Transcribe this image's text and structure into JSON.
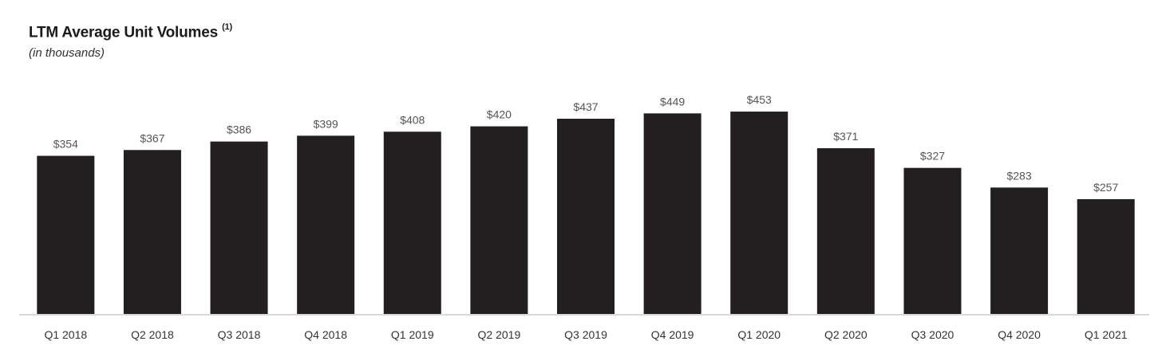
{
  "chart_data": {
    "type": "bar",
    "title": "LTM Average Unit Volumes",
    "title_footnote": "(1)",
    "subtitle": "(in thousands)",
    "xlabel": "",
    "ylabel": "",
    "categories": [
      "Q1 2018",
      "Q2 2018",
      "Q3 2018",
      "Q4 2018",
      "Q1 2019",
      "Q2 2019",
      "Q3 2019",
      "Q4 2019",
      "Q1 2020",
      "Q2 2020",
      "Q3 2020",
      "Q4 2020",
      "Q1 2021"
    ],
    "values": [
      354,
      367,
      386,
      399,
      408,
      420,
      437,
      449,
      453,
      371,
      327,
      283,
      257
    ],
    "data_labels": [
      "$354",
      "$367",
      "$386",
      "$399",
      "$408",
      "$420",
      "$437",
      "$449",
      "$453",
      "$371",
      "$327",
      "$283",
      "$257"
    ],
    "ylim": [
      0,
      520
    ],
    "grid": false,
    "legend": "none",
    "bar_color": "#231f20",
    "axis_color": "#d9d9d9"
  }
}
